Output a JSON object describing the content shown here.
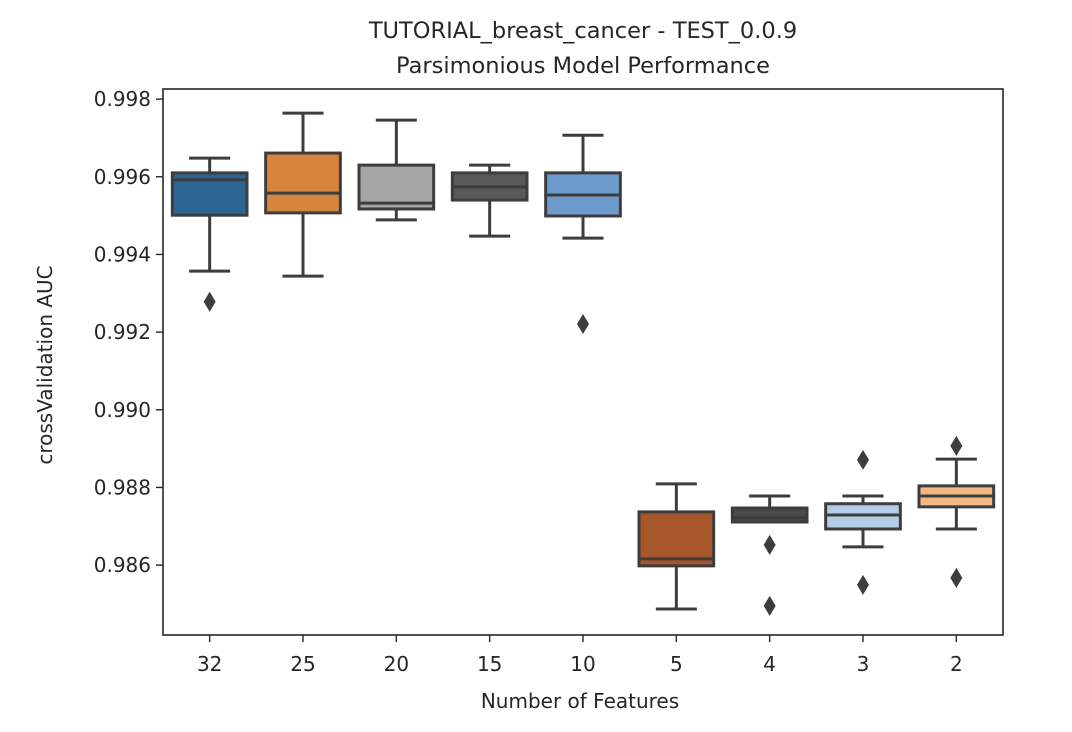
{
  "chart_data": {
    "type": "box",
    "title": "TUTORIAL_breast_cancer - TEST_0.0.9",
    "subtitle": "Parsimonious Model Performance",
    "xlabel": "Number of Features",
    "ylabel": "crossValidation AUC",
    "ylim": [
      0.9842,
      0.99826
    ],
    "yticks": [
      0.986,
      0.988,
      0.99,
      0.992,
      0.994,
      0.996,
      0.998
    ],
    "ytick_labels": [
      "0.986",
      "0.988",
      "0.990",
      "0.992",
      "0.994",
      "0.996",
      "0.998"
    ],
    "grid": false,
    "categories": [
      "32",
      "25",
      "20",
      "15",
      "10",
      "5",
      "4",
      "3",
      "2"
    ],
    "boxes": [
      {
        "category": "32",
        "color": "#2b6593",
        "whisker_low": 0.99357,
        "q1": 0.99501,
        "median": 0.99592,
        "q3": 0.9961,
        "whisker_high": 0.99648,
        "outliers": [
          0.99278
        ]
      },
      {
        "category": "25",
        "color": "#d7843f",
        "whisker_low": 0.99344,
        "q1": 0.99507,
        "median": 0.99558,
        "q3": 0.99661,
        "whisker_high": 0.99764,
        "outliers": []
      },
      {
        "category": "20",
        "color": "#a5a5a5",
        "whisker_low": 0.99489,
        "q1": 0.99517,
        "median": 0.99532,
        "q3": 0.9963,
        "whisker_high": 0.99746,
        "outliers": []
      },
      {
        "category": "15",
        "color": "#595959",
        "whisker_low": 0.99447,
        "q1": 0.9954,
        "median": 0.99574,
        "q3": 0.9961,
        "whisker_high": 0.9963,
        "outliers": []
      },
      {
        "category": "10",
        "color": "#6d9bcc",
        "whisker_low": 0.99442,
        "q1": 0.99499,
        "median": 0.99553,
        "q3": 0.9961,
        "whisker_high": 0.99707,
        "outliers": [
          0.99221
        ]
      },
      {
        "category": "5",
        "color": "#a65628",
        "whisker_low": 0.98487,
        "q1": 0.98598,
        "median": 0.98616,
        "q3": 0.98737,
        "whisker_high": 0.98809,
        "outliers": []
      },
      {
        "category": "4",
        "color": "#4a4a4a",
        "whisker_low": 0.98711,
        "q1": 0.98711,
        "median": 0.98722,
        "q3": 0.98747,
        "whisker_high": 0.98778,
        "outliers": [
          0.98652,
          0.98495
        ]
      },
      {
        "category": "3",
        "color": "#b3cde8",
        "whisker_low": 0.98647,
        "q1": 0.98693,
        "median": 0.98729,
        "q3": 0.98758,
        "whisker_high": 0.98778,
        "outliers": [
          0.98871,
          0.98549
        ]
      },
      {
        "category": "2",
        "color": "#f4b982",
        "whisker_low": 0.98693,
        "q1": 0.9875,
        "median": 0.98778,
        "q3": 0.98804,
        "whisker_high": 0.98873,
        "outliers": [
          0.98907,
          0.98567
        ]
      }
    ]
  }
}
